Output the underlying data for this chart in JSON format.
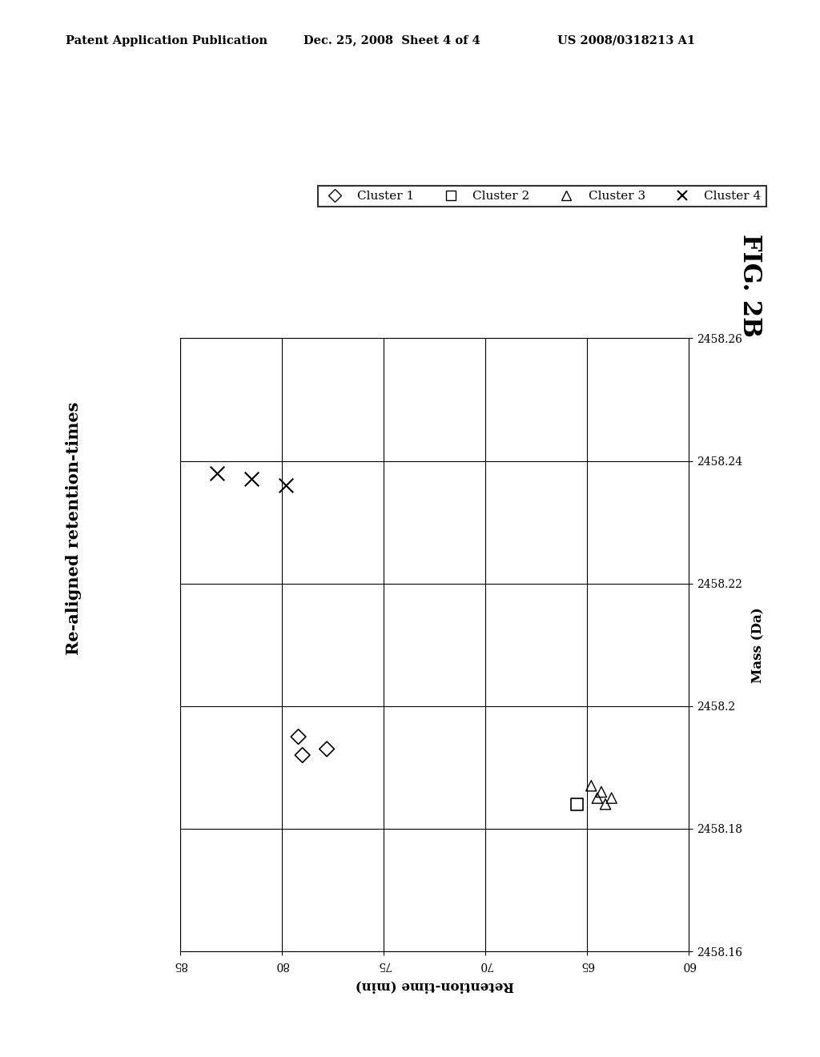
{
  "title": "Re-aligned retention-times",
  "xlabel_rotated": "Mass (Da)",
  "ylabel_rotated": "Retention-time (min)",
  "fig_label": "FIG. 2B",
  "header_left": "Patent Application Publication",
  "header_center": "Dec. 25, 2008  Sheet 4 of 4",
  "header_right": "US 2008/0318213 A1",
  "xlim": [
    60,
    85
  ],
  "ylim": [
    2458.16,
    2458.26
  ],
  "xticks": [
    60,
    65,
    70,
    75,
    80,
    85
  ],
  "yticks": [
    2458.16,
    2458.18,
    2458.2,
    2458.22,
    2458.24,
    2458.26
  ],
  "xtick_labels": [
    "60",
    "65",
    "70",
    "75",
    "80",
    "85"
  ],
  "ytick_labels": [
    "2458.16",
    "2458.18",
    "2458.2",
    "2458.22",
    "2458.24",
    "2458.26"
  ],
  "cluster1": {
    "retention": [
      79.2,
      77.8,
      79.0
    ],
    "mass": [
      2458.195,
      2458.193,
      2458.192
    ],
    "marker": "D",
    "label": "Cluster 1",
    "markersize": 6
  },
  "cluster2": {
    "retention": [
      65.5
    ],
    "mass": [
      2458.184
    ],
    "marker": "s",
    "label": "Cluster 2",
    "markersize": 7
  },
  "cluster3": {
    "retention": [
      63.8,
      64.3,
      64.8,
      64.5,
      64.1
    ],
    "mass": [
      2458.185,
      2458.186,
      2458.187,
      2458.185,
      2458.184
    ],
    "marker": "^",
    "label": "Cluster 3",
    "markersize": 6
  },
  "cluster4": {
    "retention": [
      83.2,
      81.5,
      79.8
    ],
    "mass": [
      2458.238,
      2458.237,
      2458.236
    ],
    "marker": "x",
    "label": "Cluster 4",
    "markersize": 8
  },
  "bg_color": "#ffffff",
  "text_color": "#000000"
}
